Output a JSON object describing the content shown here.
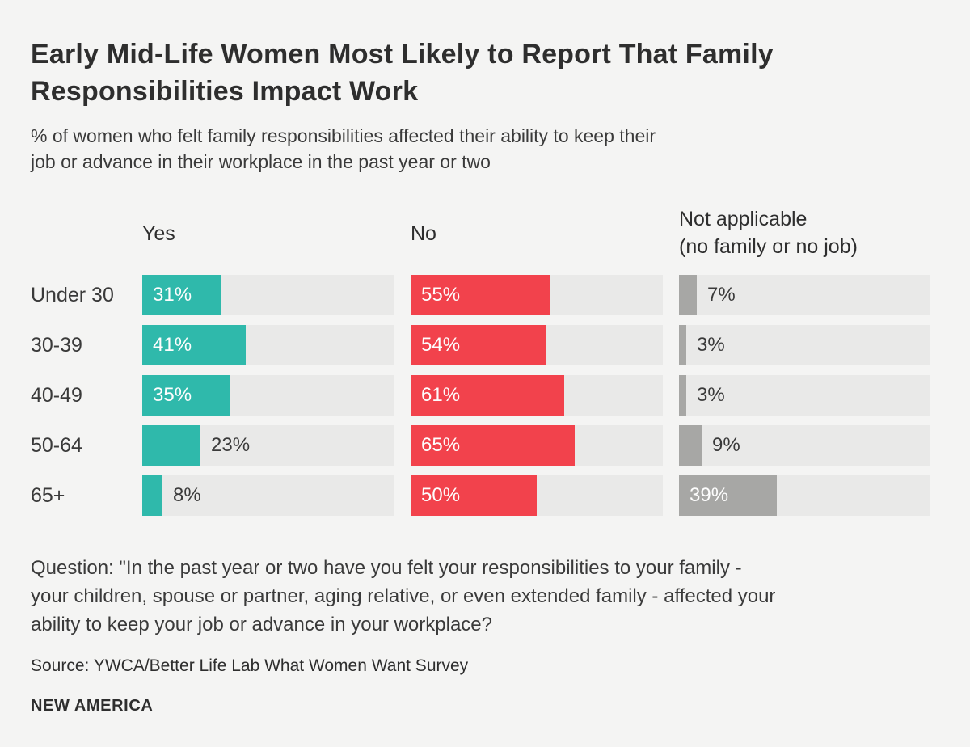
{
  "header": {
    "title_lines": [
      "Early Mid-Life Women Most Likely to Report That Family",
      "Responsibilities Impact Work"
    ],
    "subtitle_lines": [
      "% of women who felt family responsibilities affected their ability to keep their",
      "job or advance in their workplace in the past year or two"
    ]
  },
  "chart_data": {
    "type": "bar",
    "orientation": "horizontal",
    "title": "Early Mid-Life Women Most Likely to Report That Family Responsibilities Impact Work",
    "subtitle": "% of women who felt family responsibilities affected their ability to keep their job or advance in their workplace in the past year or two",
    "categories": [
      "Under 30",
      "30-39",
      "40-49",
      "50-64",
      "65+"
    ],
    "series": [
      {
        "name": "Yes",
        "header_lines": [
          "Yes"
        ],
        "color": "#2fb9ab",
        "values": [
          31,
          41,
          35,
          23,
          8
        ]
      },
      {
        "name": "No",
        "header_lines": [
          "No"
        ],
        "color": "#f2424c",
        "values": [
          55,
          54,
          61,
          65,
          50
        ]
      },
      {
        "name": "Not applicable (no family or no job)",
        "header_lines": [
          "Not applicable",
          "(no family or no job)"
        ],
        "color": "#a7a7a5",
        "values": [
          7,
          3,
          3,
          9,
          39
        ]
      }
    ],
    "value_suffix": "%",
    "xlim": [
      0,
      100
    ],
    "grid": false,
    "legend_position": "column-headers",
    "track_color": "#e9e9e8",
    "inside_label_color": "#fdfdfd",
    "outside_label_color": "#3a3a3a"
  },
  "footer": {
    "question_lines": [
      "Question: \"In the past year or two have you felt your responsibilities to your family -",
      "your children, spouse or partner, aging relative, or even extended family - affected your",
      "ability to keep your job or advance in your workplace?"
    ],
    "source": "Source: YWCA/Better Life Lab What Women Want Survey",
    "brand": "NEW AMERICA"
  },
  "colors": {
    "background": "#f4f4f3",
    "title_text": "#2e2e2e",
    "body_text": "#3a3a3a"
  }
}
